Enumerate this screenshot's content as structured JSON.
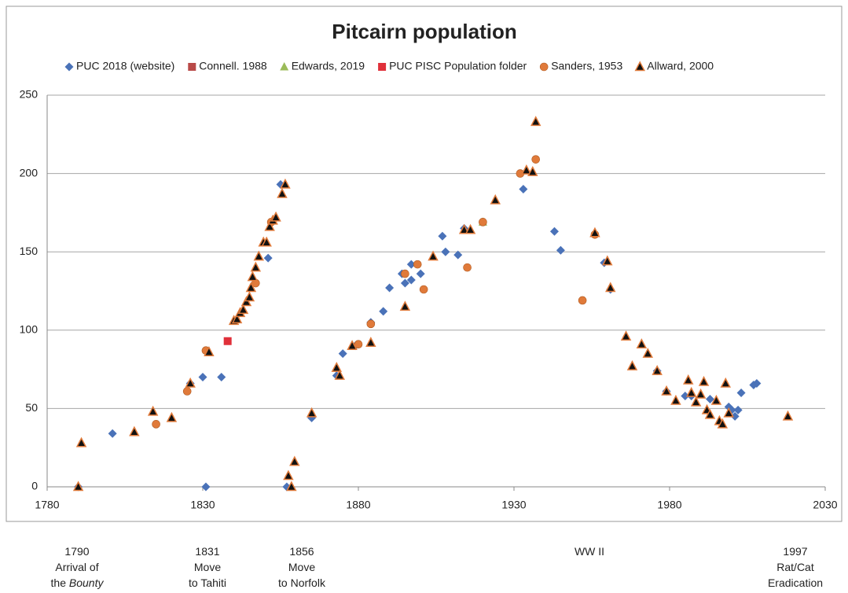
{
  "chart_data": {
    "type": "scatter",
    "title": "Pitcairn population",
    "xlim": [
      1780,
      2030
    ],
    "xticks": [
      1780,
      1830,
      1880,
      1930,
      1980,
      2030
    ],
    "ylim": [
      0,
      250
    ],
    "yticks": [
      0,
      50,
      100,
      150,
      200,
      250
    ],
    "grid": true,
    "legend": "top",
    "series": [
      {
        "name": "PUC 2018 (website)",
        "color": "#4a72b8",
        "marker": "diamond",
        "x": [
          1790,
          1801,
          1826,
          1830,
          1831,
          1836,
          1851,
          1855,
          1857,
          1865,
          1873,
          1875,
          1879,
          1884,
          1888,
          1890,
          1894,
          1895,
          1897,
          1897,
          1900,
          1907,
          1908,
          1912,
          1914,
          1933,
          1943,
          1945,
          1959,
          1961,
          1976,
          1979,
          1985,
          1987,
          1993,
          1999,
          2000,
          2001,
          2002,
          2003,
          2007,
          2008
        ],
        "values": [
          0,
          34,
          66,
          70,
          0,
          70,
          146,
          193,
          0,
          44,
          71,
          85,
          90,
          105,
          112,
          127,
          136,
          130,
          132,
          142,
          136,
          160,
          150,
          148,
          165,
          190,
          163,
          151,
          143,
          126,
          74,
          61,
          58,
          58,
          56,
          51,
          49,
          45,
          49,
          60,
          65,
          66
        ]
      },
      {
        "name": "Connell. 1988",
        "color": "#b94a48",
        "marker": "square",
        "x": [],
        "values": []
      },
      {
        "name": "Edwards, 2019",
        "color": "#9bbb59",
        "marker": "triangle",
        "x": [
          1920
        ],
        "values": [
          169
        ]
      },
      {
        "name": "PUC PISC Population folder",
        "color": "#e0303a",
        "marker": "square",
        "x": [
          1838
        ],
        "values": [
          93
        ]
      },
      {
        "name": "Sanders, 1953",
        "color": "#e07a3a",
        "marker": "circle",
        "x": [
          1815,
          1825,
          1831,
          1847,
          1852,
          1884,
          1880,
          1895,
          1899,
          1901,
          1915,
          1920,
          1932,
          1937,
          1952,
          1956
        ],
        "values": [
          40,
          61,
          87,
          130,
          169,
          104,
          91,
          136,
          142,
          126,
          140,
          169,
          200,
          209,
          119,
          161
        ]
      },
      {
        "name": "Allward, 2000",
        "color": "#111111",
        "edgecolor": "#e07a3a",
        "marker": "triangle",
        "x": [
          1790,
          1791,
          1808,
          1814,
          1820,
          1826,
          1832,
          1840,
          1841,
          1842,
          1843,
          1844,
          1845,
          1845.5,
          1846,
          1847,
          1848,
          1849.5,
          1850.5,
          1851.5,
          1852.5,
          1853.5,
          1855.5,
          1856.5,
          1857.5,
          1858.5,
          1859.5,
          1865,
          1873,
          1874,
          1878,
          1884,
          1895,
          1904,
          1914,
          1916,
          1924,
          1934,
          1936,
          1937,
          1956,
          1960,
          1961,
          1966,
          1968,
          1971,
          1973,
          1976,
          1979,
          1982,
          1986,
          1987,
          1988.5,
          1990,
          1991,
          1992,
          1993,
          1995,
          1996,
          1997,
          1998,
          1999,
          2018
        ],
        "values": [
          0,
          28,
          35,
          48,
          44,
          66,
          86,
          106,
          107,
          111,
          113,
          118,
          121,
          127,
          134,
          140,
          147,
          156,
          156,
          166,
          170,
          172,
          187,
          193,
          7,
          0,
          16,
          47,
          76,
          71,
          90,
          92,
          115,
          147,
          164,
          164,
          183,
          202,
          201,
          233,
          162,
          144,
          127,
          96,
          77,
          91,
          85,
          74,
          61,
          55,
          68,
          60,
          54,
          59,
          67,
          49,
          46,
          55,
          42,
          40,
          66,
          47,
          45
        ]
      }
    ],
    "annotations": [
      {
        "lines": [
          [
            {
              "text": "1790"
            }
          ],
          [
            {
              "text": "Arrival of"
            }
          ],
          [
            {
              "text": "the "
            },
            {
              "text": "Bounty",
              "italic": true
            }
          ]
        ]
      },
      {
        "lines": [
          [
            {
              "text": "1831"
            }
          ],
          [
            {
              "text": "Move"
            }
          ],
          [
            {
              "text": "to Tahiti"
            }
          ]
        ]
      },
      {
        "lines": [
          [
            {
              "text": "1856"
            }
          ],
          [
            {
              "text": "Move"
            }
          ],
          [
            {
              "text": "to Norfolk"
            }
          ]
        ]
      },
      {
        "lines": [
          [
            {
              "text": "WW II"
            }
          ]
        ]
      },
      {
        "lines": [
          [
            {
              "text": "1997"
            }
          ],
          [
            {
              "text": "Rat/Cat"
            }
          ],
          [
            {
              "text": "Eradication"
            }
          ]
        ]
      }
    ]
  }
}
